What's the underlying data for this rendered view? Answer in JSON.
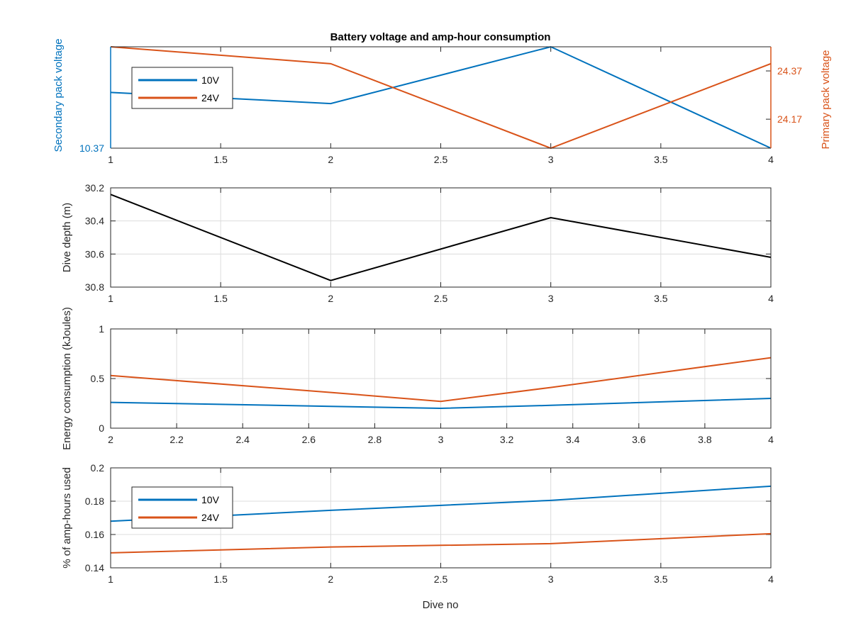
{
  "figure": {
    "title": "Battery voltage and amp-hour consumption",
    "xlabel": "Dive no"
  },
  "colors": {
    "s10V": "#0072BD",
    "s24V": "#D95319",
    "depth": "#000000"
  },
  "chart_data": [
    {
      "type": "line",
      "title": "Battery voltage and amp-hour consumption",
      "xlabel": "",
      "ylabel_left": "Secondary pack voltage",
      "ylabel_right": "Primary pack voltage",
      "xlim": [
        1,
        4
      ],
      "xticks": [
        1,
        1.5,
        2,
        2.5,
        3,
        3.5,
        4
      ],
      "xticklabels": [
        "1",
        "1.5",
        "2",
        "2.5",
        "3",
        "3.5",
        "4"
      ],
      "ylim_left": [
        10.37,
        10.47
      ],
      "yticks_left": [
        10.37
      ],
      "yticklabels_left": [
        "10.37"
      ],
      "ylim_right": [
        24.05,
        24.47
      ],
      "yticks_right": [
        24.17,
        24.37
      ],
      "yticklabels_right": [
        "24.17",
        "24.37"
      ],
      "grid": false,
      "legend": {
        "entries": [
          "10V",
          "24V"
        ],
        "location": "top-left"
      },
      "series": [
        {
          "name": "10V",
          "axis": "left",
          "x": [
            1,
            2,
            3,
            4
          ],
          "y": [
            10.425,
            10.414,
            10.47,
            10.37
          ]
        },
        {
          "name": "24V",
          "axis": "right",
          "x": [
            1,
            2,
            3,
            4
          ],
          "y": [
            24.47,
            24.4,
            24.05,
            24.4
          ]
        }
      ]
    },
    {
      "type": "line",
      "ylabel": "Dive depth (m)",
      "xlabel": "",
      "xlim": [
        1,
        4
      ],
      "xticks": [
        1,
        1.5,
        2,
        2.5,
        3,
        3.5,
        4
      ],
      "xticklabels": [
        "1",
        "1.5",
        "2",
        "2.5",
        "3",
        "3.5",
        "4"
      ],
      "ylim": [
        30.2,
        30.8
      ],
      "y_reversed": true,
      "yticks": [
        30.2,
        30.4,
        30.6,
        30.8
      ],
      "yticklabels": [
        "30.2",
        "30.4",
        "30.6",
        "30.8"
      ],
      "grid": true,
      "series": [
        {
          "name": "",
          "x": [
            1,
            2,
            3,
            4
          ],
          "y": [
            30.24,
            30.76,
            30.38,
            30.62
          ]
        }
      ]
    },
    {
      "type": "line",
      "ylabel": "Energy consumption (kJoules)",
      "xlabel": "",
      "xlim": [
        2,
        4
      ],
      "xticks": [
        2,
        2.2,
        2.4,
        2.6,
        2.8,
        3,
        3.2,
        3.4,
        3.6,
        3.8,
        4
      ],
      "xticklabels": [
        "2",
        "2.2",
        "2.4",
        "2.6",
        "2.8",
        "3",
        "3.2",
        "3.4",
        "3.6",
        "3.8",
        "4"
      ],
      "ylim": [
        0,
        1
      ],
      "yticks": [
        0,
        0.5,
        1
      ],
      "yticklabels": [
        "0",
        "0.5",
        "1"
      ],
      "grid": true,
      "series": [
        {
          "name": "10V",
          "x": [
            2,
            2.667,
            3,
            3.333,
            4
          ],
          "y": [
            0.26,
            0.22,
            0.2,
            0.23,
            0.3
          ]
        },
        {
          "name": "24V",
          "x": [
            2,
            2.667,
            3,
            3.333,
            4
          ],
          "y": [
            0.53,
            0.36,
            0.27,
            0.41,
            0.71
          ]
        }
      ]
    },
    {
      "type": "line",
      "ylabel": "% of amp-hours used",
      "xlabel": "Dive no",
      "xlim": [
        1,
        4
      ],
      "xticks": [
        1,
        1.5,
        2,
        2.5,
        3,
        3.5,
        4
      ],
      "xticklabels": [
        "1",
        "1.5",
        "2",
        "2.5",
        "3",
        "3.5",
        "4"
      ],
      "ylim": [
        0.14,
        0.2
      ],
      "yticks": [
        0.14,
        0.16,
        0.18,
        0.2
      ],
      "yticklabels": [
        "0.14",
        "0.16",
        "0.18",
        "0.2"
      ],
      "grid": true,
      "legend": {
        "entries": [
          "10V",
          "24V"
        ],
        "location": "top-left"
      },
      "series": [
        {
          "name": "10V",
          "x": [
            1,
            2,
            3,
            4
          ],
          "y": [
            0.168,
            0.1745,
            0.1805,
            0.189
          ]
        },
        {
          "name": "24V",
          "x": [
            1,
            2,
            3,
            4
          ],
          "y": [
            0.149,
            0.1525,
            0.1545,
            0.1605
          ]
        }
      ]
    }
  ]
}
